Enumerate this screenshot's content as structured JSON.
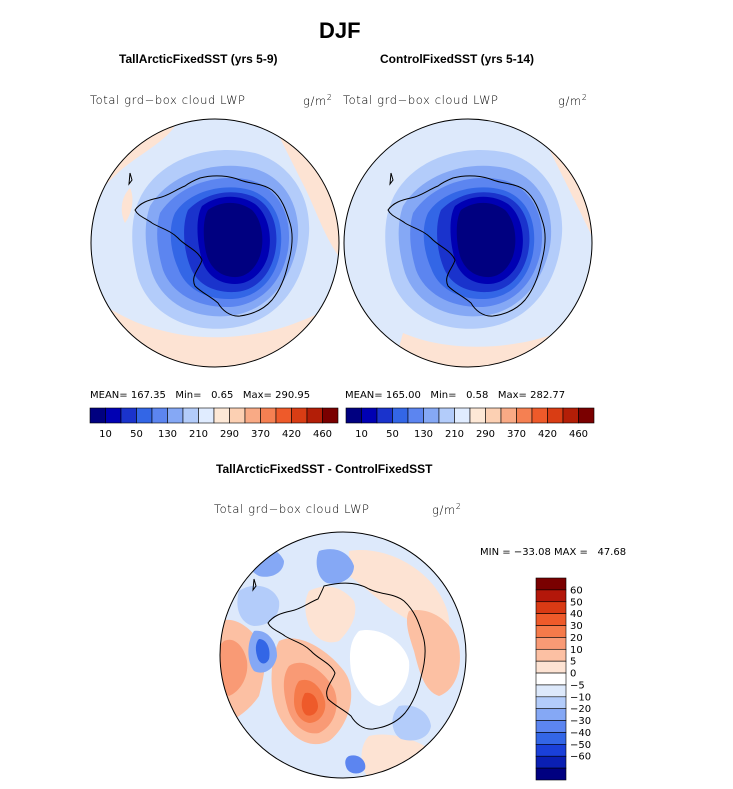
{
  "page_title": "DJF",
  "panels": [
    {
      "title": "TallArcticFixedSST (yrs 5-9)",
      "variable": "Total grd−box cloud LWP",
      "units_base": "g/m",
      "units_exp": "2",
      "stats": {
        "mean_label": "MEAN=",
        "mean": "167.35",
        "min_label": "Min=",
        "min": "0.65",
        "max_label": "Max=",
        "max": "290.95"
      }
    },
    {
      "title": "ControlFixedSST (yrs 5-14)",
      "variable": "Total grd−box cloud LWP",
      "units_base": "g/m",
      "units_exp": "2",
      "stats": {
        "mean_label": "MEAN=",
        "mean": "165.00",
        "min_label": "Min=",
        "min": "0.58",
        "max_label": "Max=",
        "max": "282.77"
      }
    }
  ],
  "abs_colorbar": {
    "colors": [
      "#000080",
      "#0000b3",
      "#1a33cc",
      "#3366e6",
      "#5c85f0",
      "#85a8f5",
      "#b3ccfa",
      "#e0ecff",
      "#fde8d6",
      "#fcd0b3",
      "#f9aa85",
      "#f58052",
      "#ee5a2a",
      "#d93d14",
      "#b31e07",
      "#7a0000"
    ],
    "labels": [
      "10",
      "50",
      "130",
      "210",
      "290",
      "370",
      "420",
      "460"
    ]
  },
  "diff_panel": {
    "title": "TallArcticFixedSST - ControlFixedSST",
    "variable": "Total grd−box cloud LWP",
    "units_base": "g/m",
    "units_exp": "2",
    "stats": {
      "min_label": "MIN =",
      "min": "−33.08",
      "max_label": "MAX =",
      "max": "47.68"
    }
  },
  "diff_colorbar": {
    "colors": [
      "#7a0000",
      "#b3170a",
      "#d93a14",
      "#ee5a2a",
      "#f57a4a",
      "#f99a75",
      "#fcc0a3",
      "#fde3d3",
      "#ffffff",
      "#dde9fb",
      "#b3ccfa",
      "#85a8f5",
      "#5c85f0",
      "#3366e6",
      "#1a40d9",
      "#0a1fb3",
      "#000080"
    ],
    "labels": [
      "60",
      "50",
      "40",
      "30",
      "20",
      "10",
      "5",
      "0",
      "−5",
      "−10",
      "−20",
      "−30",
      "−40",
      "−50",
      "−60"
    ]
  }
}
